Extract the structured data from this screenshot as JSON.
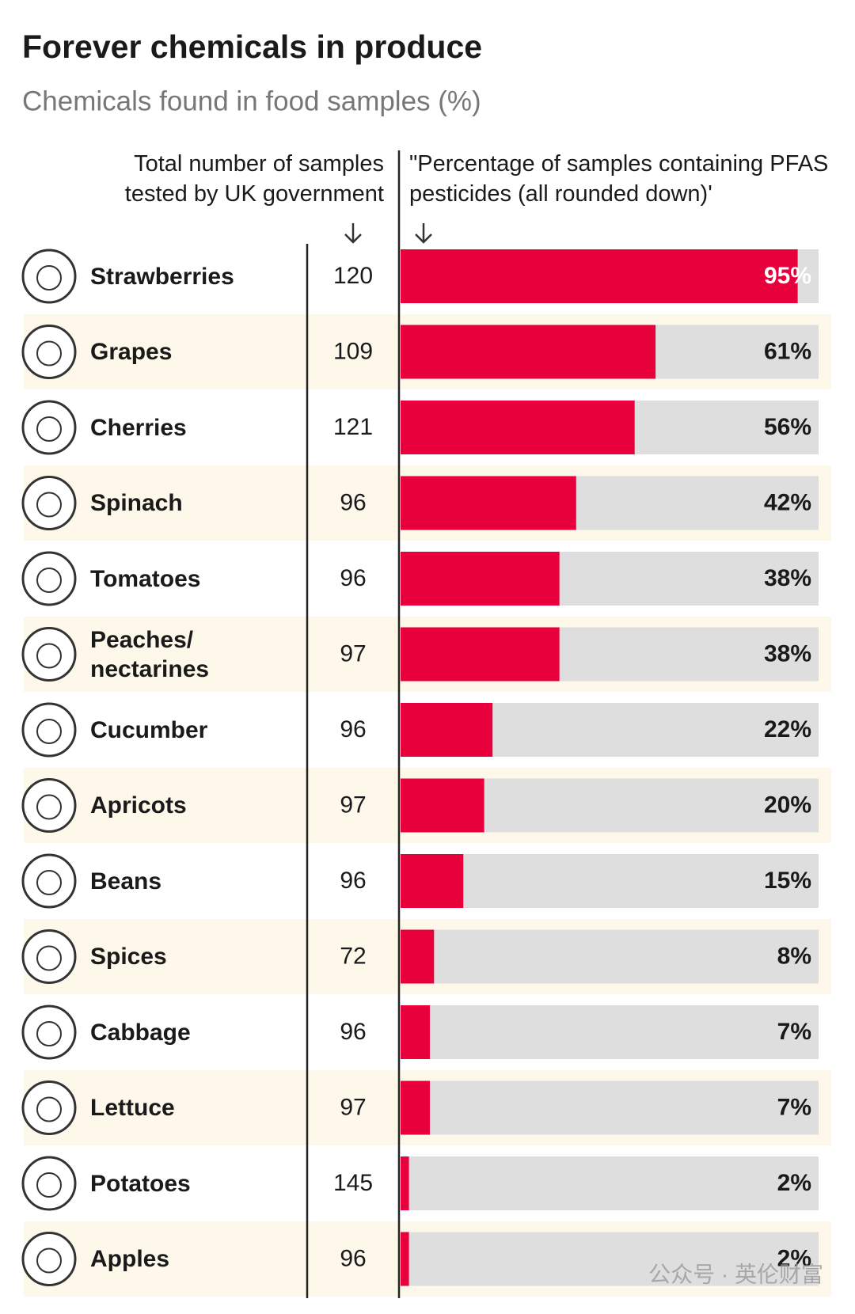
{
  "chart_data": {
    "type": "bar",
    "title": "Forever chemicals in produce",
    "subtitle": "Chemicals found in food samples (%)",
    "samples_heading": "Total number of samples tested by UK government",
    "values_heading": "\"Percentage of samples containing PFAS pesticides (all rounded down)'",
    "categories": [
      "Strawberries",
      "Grapes",
      "Cherries",
      "Spinach",
      "Tomatoes",
      "Peaches/ nectarines",
      "Cucumber",
      "Apricots",
      "Beans",
      "Spices",
      "Cabbage",
      "Lettuce",
      "Potatoes",
      "Apples"
    ],
    "samples": [
      120,
      109,
      121,
      96,
      96,
      97,
      96,
      97,
      96,
      72,
      96,
      97,
      145,
      96
    ],
    "values": [
      95,
      61,
      56,
      42,
      38,
      38,
      22,
      20,
      15,
      8,
      7,
      7,
      2,
      2
    ],
    "value_labels": [
      "95%",
      "61%",
      "56%",
      "42%",
      "38%",
      "38%",
      "22%",
      "20%",
      "15%",
      "8%",
      "7%",
      "7%",
      "2%",
      "2%"
    ],
    "xlim": [
      0,
      100
    ],
    "color": "#e8003d",
    "track_color": "#dedede",
    "watermark": "公众号 · 英伦财富"
  }
}
